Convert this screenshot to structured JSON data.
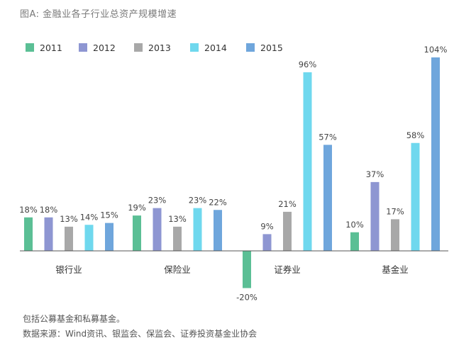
{
  "header": {
    "title": "图A: 金融业各子行业总资产规模增速"
  },
  "notes": {
    "line1": "包括公募基金和私募基金。",
    "line2": "数据来源：Wind资讯、银监会、保监会、证券投资基金业协会"
  },
  "chart_data": {
    "type": "bar",
    "title": "图A: 金融业各子行业总资产规模增速",
    "categories": [
      "银行业",
      "保险业",
      "证券业",
      "基金业"
    ],
    "series": [
      {
        "name": "2011",
        "color": "#5bbf95",
        "values": [
          18,
          19,
          -20,
          10
        ]
      },
      {
        "name": "2012",
        "color": "#8e96d2",
        "values": [
          18,
          23,
          9,
          37
        ]
      },
      {
        "name": "2013",
        "color": "#a8a8a8",
        "values": [
          13,
          13,
          21,
          17
        ]
      },
      {
        "name": "2014",
        "color": "#6fd8ee",
        "values": [
          14,
          23,
          96,
          58
        ]
      },
      {
        "name": "2015",
        "color": "#6fa6dc",
        "values": [
          15,
          22,
          57,
          104
        ]
      }
    ],
    "value_suffix": "%",
    "xlabel": "",
    "ylabel": "",
    "ylim": [
      -20,
      104
    ],
    "grid": false,
    "legend": "top-left"
  }
}
